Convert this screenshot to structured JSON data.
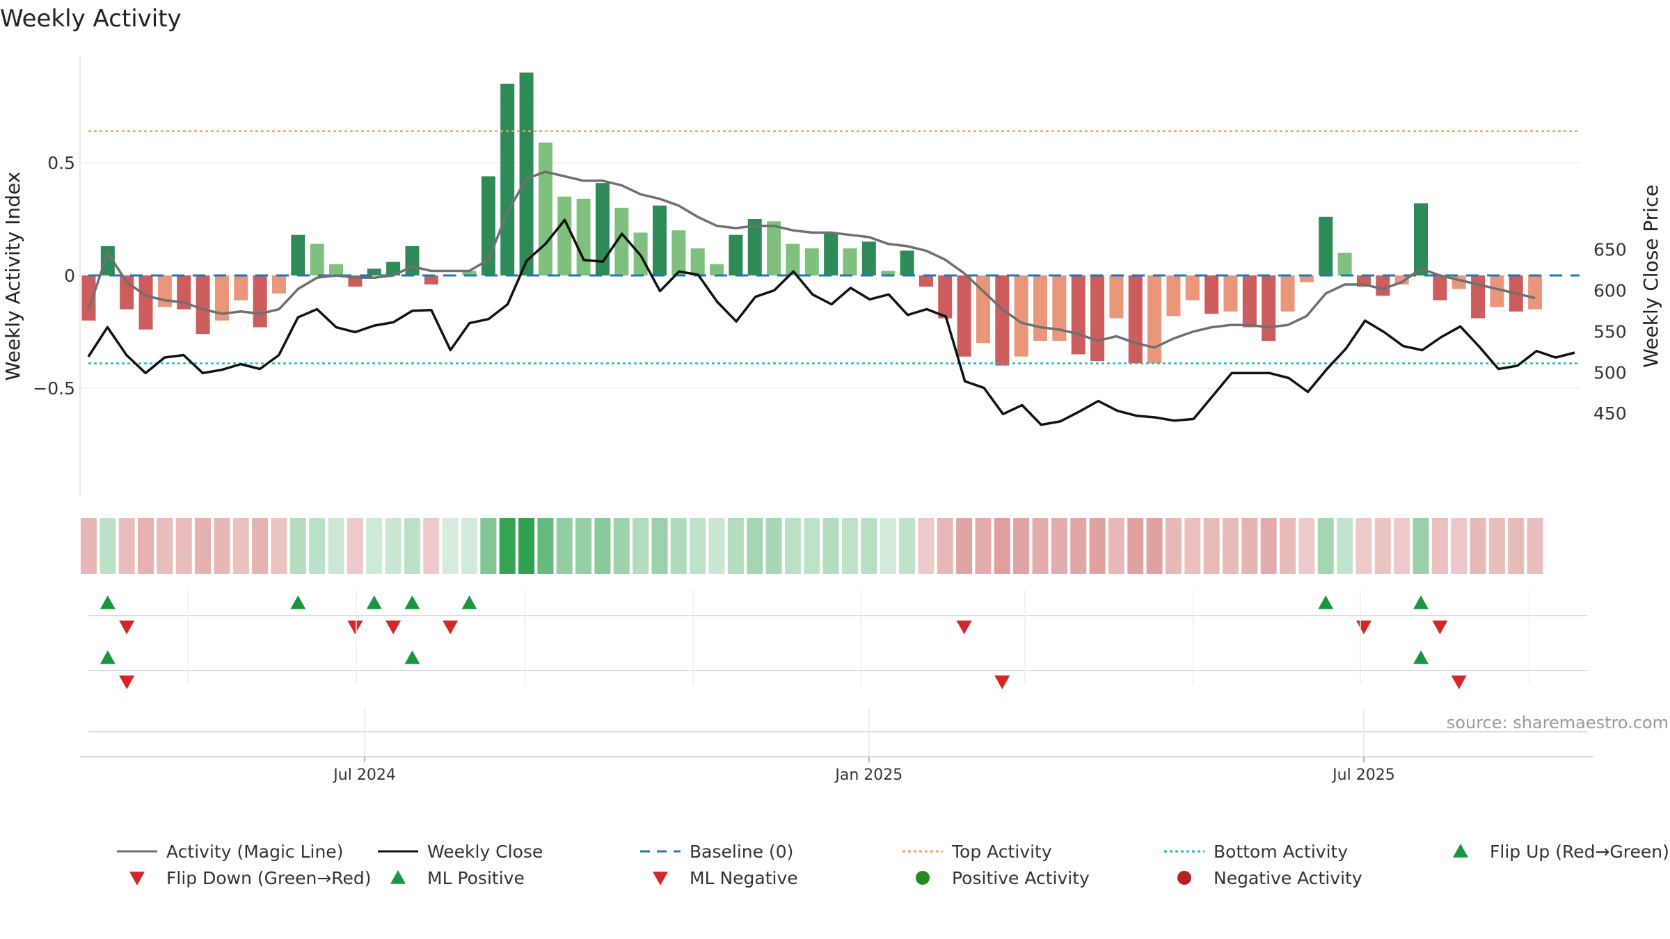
{
  "chart_data": {
    "type": "bar",
    "title": "Weekly Activity",
    "ylabel": "Weekly Activity Index",
    "y2label": "Weekly Close Price",
    "ylim": [
      -0.97,
      0.97
    ],
    "y2lim": [
      422,
      693
    ],
    "yticks": [
      {
        "value": 0.5,
        "label": "0.5"
      },
      {
        "value": 0,
        "label": "0"
      },
      {
        "value": -0.5,
        "label": "−0.5"
      }
    ],
    "y2ticks": [
      450,
      500,
      550,
      600,
      650
    ],
    "xticks": [
      {
        "label": "Jul 2024",
        "index": 14.5
      },
      {
        "label": "Jan 2025",
        "index": 41.0
      },
      {
        "label": "Jul 2025",
        "index": 67.0
      }
    ],
    "top_activity": 0.64,
    "bottom_activity": -0.39,
    "baseline": 0,
    "grid": true,
    "legend_position": "bottom",
    "source_text": "source: sharemaestro.com",
    "colors": {
      "positive_strong": "#2e8b57",
      "positive_light": "#7fc07f",
      "negative_strong": "#cd5c5c",
      "negative_light": "#e9967a",
      "magic_line": "#707070",
      "weekly_close": "#111111",
      "baseline": "#1f77b4",
      "top_activity": "#f0a35e",
      "bottom_activity": "#17becf",
      "flip_up": "#1a9641",
      "flip_down": "#d62728",
      "positive_dot": "#228b22",
      "negative_dot": "#b22222"
    },
    "activity": [
      -0.2,
      0.13,
      -0.15,
      -0.24,
      -0.14,
      -0.15,
      -0.26,
      -0.2,
      -0.11,
      -0.23,
      -0.08,
      0.18,
      0.14,
      0.05,
      -0.05,
      0.03,
      0.06,
      0.13,
      -0.04,
      0.0,
      0.02,
      0.44,
      0.85,
      0.9,
      0.59,
      0.35,
      0.34,
      0.41,
      0.3,
      0.19,
      0.31,
      0.2,
      0.12,
      0.05,
      0.18,
      0.25,
      0.24,
      0.14,
      0.12,
      0.19,
      0.12,
      0.15,
      0.02,
      0.11,
      -0.05,
      -0.19,
      -0.36,
      -0.3,
      -0.4,
      -0.36,
      -0.29,
      -0.29,
      -0.35,
      -0.38,
      -0.19,
      -0.39,
      -0.39,
      -0.18,
      -0.11,
      -0.17,
      -0.16,
      -0.23,
      -0.29,
      -0.16,
      -0.03,
      0.26,
      0.1,
      -0.05,
      -0.09,
      -0.04,
      0.32,
      -0.11,
      -0.06,
      -0.19,
      -0.14,
      -0.16,
      -0.15
    ],
    "bar_strength": [
      "strong",
      "strong",
      "strong",
      "strong",
      "light",
      "strong",
      "strong",
      "light",
      "light",
      "strong",
      "light",
      "strong",
      "light",
      "light",
      "strong",
      "strong",
      "strong",
      "strong",
      "strong",
      "light",
      "light",
      "strong",
      "strong",
      "strong",
      "light",
      "light",
      "light",
      "strong",
      "light",
      "light",
      "strong",
      "light",
      "light",
      "light",
      "strong",
      "strong",
      "light",
      "light",
      "light",
      "strong",
      "light",
      "strong",
      "light",
      "strong",
      "strong",
      "strong",
      "strong",
      "light",
      "strong",
      "light",
      "light",
      "light",
      "strong",
      "strong",
      "light",
      "strong",
      "light",
      "light",
      "light",
      "strong",
      "light",
      "strong",
      "strong",
      "light",
      "light",
      "strong",
      "light",
      "strong",
      "strong",
      "light",
      "strong",
      "strong",
      "light",
      "strong",
      "light",
      "strong",
      "light"
    ],
    "magic_line": [
      -0.15,
      0.1,
      -0.03,
      -0.09,
      -0.11,
      -0.12,
      -0.15,
      -0.17,
      -0.16,
      -0.17,
      -0.15,
      -0.06,
      -0.01,
      0.0,
      -0.01,
      -0.01,
      0.0,
      0.04,
      0.02,
      0.02,
      0.02,
      0.07,
      0.28,
      0.43,
      0.46,
      0.44,
      0.42,
      0.42,
      0.4,
      0.36,
      0.34,
      0.31,
      0.26,
      0.22,
      0.21,
      0.22,
      0.22,
      0.2,
      0.19,
      0.19,
      0.18,
      0.17,
      0.14,
      0.13,
      0.11,
      0.07,
      0.01,
      -0.07,
      -0.15,
      -0.21,
      -0.23,
      -0.24,
      -0.26,
      -0.29,
      -0.27,
      -0.3,
      -0.32,
      -0.28,
      -0.25,
      -0.23,
      -0.22,
      -0.22,
      -0.23,
      -0.22,
      -0.18,
      -0.08,
      -0.04,
      -0.04,
      -0.06,
      -0.03,
      0.03,
      0.0,
      -0.02,
      -0.04,
      -0.06,
      -0.08,
      -0.1
    ],
    "weekly_close": [
      519,
      555,
      521,
      499,
      518,
      521,
      499,
      503,
      510,
      504,
      521,
      567,
      577,
      555,
      549,
      557,
      561,
      575,
      576,
      527,
      560,
      565,
      583,
      636,
      657,
      686,
      637,
      635,
      669,
      642,
      599,
      623,
      619,
      586,
      562,
      592,
      600,
      623,
      595,
      583,
      603,
      589,
      595,
      570,
      577,
      568,
      489,
      481,
      449,
      460,
      436,
      440,
      452,
      465,
      453,
      447,
      445,
      441,
      443,
      471,
      499,
      499,
      499,
      493,
      476,
      504,
      529,
      563,
      549,
      532,
      527,
      543,
      556,
      531,
      504,
      508,
      526,
      518,
      524
    ],
    "weekly_close_index": [
      0,
      1,
      2,
      3,
      4,
      5,
      6,
      7,
      8,
      9,
      10,
      11,
      12,
      13,
      14,
      15,
      16,
      17,
      18,
      19,
      20,
      21,
      22,
      23,
      24,
      25,
      26,
      27,
      28,
      29,
      30,
      31,
      32,
      33,
      34,
      35,
      36,
      37,
      38,
      39,
      40,
      41,
      42,
      43,
      44,
      45,
      46,
      47,
      48,
      49,
      50,
      51,
      52,
      53,
      54,
      55,
      56,
      57,
      58,
      59,
      60,
      61,
      62,
      63,
      64,
      65,
      66,
      67,
      68,
      69,
      70,
      71,
      72,
      73,
      74,
      75,
      76,
      77,
      78
    ],
    "flip_up_weeks_row1": [
      1,
      11,
      15,
      17,
      20,
      65,
      70
    ],
    "flip_down_weeks_row1": [
      2,
      14,
      16,
      19,
      46,
      67,
      71
    ],
    "ml_positive_weeks": [
      1,
      17,
      70
    ],
    "ml_negative_weeks": [
      2,
      48,
      72
    ],
    "legend": [
      {
        "key": "magic_line",
        "label": "Activity (Magic Line)",
        "symbol": "line-solid-grey"
      },
      {
        "key": "weekly_close",
        "label": "Weekly Close",
        "symbol": "line-solid-black"
      },
      {
        "key": "baseline",
        "label": "Baseline (0)",
        "symbol": "line-dashed-blue"
      },
      {
        "key": "top_activity",
        "label": "Top Activity",
        "symbol": "line-dotted-orange"
      },
      {
        "key": "bottom_activity",
        "label": "Bottom Activity",
        "symbol": "line-dotted-cyan"
      },
      {
        "key": "flip_up",
        "label": "Flip Up (Red→Green)",
        "symbol": "triangle-up-green"
      },
      {
        "key": "flip_down",
        "label": "Flip Down (Green→Red)",
        "symbol": "triangle-down-red"
      },
      {
        "key": "ml_positive",
        "label": "ML Positive",
        "symbol": "triangle-up-green"
      },
      {
        "key": "ml_negative",
        "label": "ML Negative",
        "symbol": "triangle-down-red"
      },
      {
        "key": "positive_activity",
        "label": "Positive Activity",
        "symbol": "dot-green"
      },
      {
        "key": "negative_activity",
        "label": "Negative Activity",
        "symbol": "dot-red"
      }
    ]
  }
}
